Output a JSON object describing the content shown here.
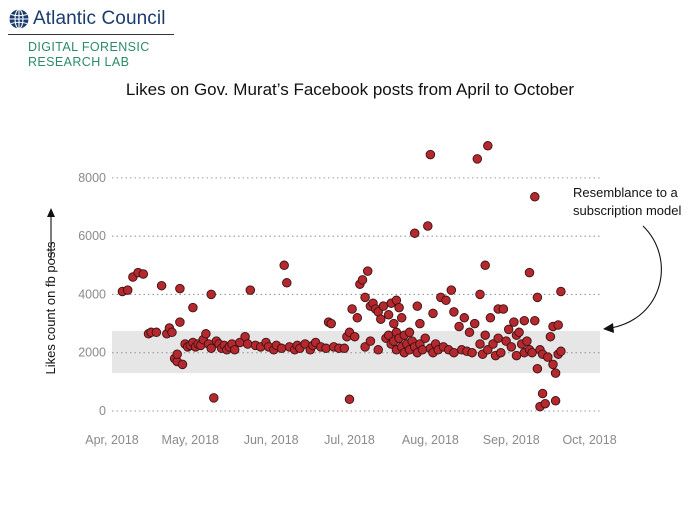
{
  "brand": {
    "org": "Atlantic Council",
    "lab_line1": "DIGITAL FORENSIC",
    "lab_line2": "RESEARCH LAB",
    "logo_icon": "globe-icon"
  },
  "colors": {
    "dot": "#b5282e",
    "dot_edge": "#3a1214",
    "band": "#e6e6e6",
    "grid": "#9a9a9a",
    "brand_blue": "#1a3b6e",
    "brand_green": "#2a8c66"
  },
  "chart_data": {
    "type": "scatter",
    "title": "Likes on Gov. Murat’s Facebook posts from April to October",
    "xlabel": "",
    "ylabel": "Likes count on fb posts",
    "x_ticks": [
      "Apr, 2018",
      "May, 2018",
      "Jun, 2018",
      "Jul, 2018",
      "Aug, 2018",
      "Sep, 2018",
      "Oct, 2018"
    ],
    "y_ticks": [
      0,
      2000,
      4000,
      6000,
      8000
    ],
    "xlim": [
      "2018-04-01",
      "2018-10-05"
    ],
    "ylim": [
      0,
      9300
    ],
    "grid": "horizontal dotted",
    "band": [
      1300,
      2750
    ],
    "annotation": {
      "line1": "Resemblance to a",
      "line2": "subscription model"
    },
    "points": [
      {
        "x": "2018-04-05",
        "y": 4100
      },
      {
        "x": "2018-04-07",
        "y": 4150
      },
      {
        "x": "2018-04-09",
        "y": 4600
      },
      {
        "x": "2018-04-11",
        "y": 4750
      },
      {
        "x": "2018-04-13",
        "y": 4700
      },
      {
        "x": "2018-04-15",
        "y": 2650
      },
      {
        "x": "2018-04-16",
        "y": 2700
      },
      {
        "x": "2018-04-18",
        "y": 2700
      },
      {
        "x": "2018-04-20",
        "y": 4300
      },
      {
        "x": "2018-04-22",
        "y": 2650
      },
      {
        "x": "2018-04-23",
        "y": 2850
      },
      {
        "x": "2018-04-24",
        "y": 2700
      },
      {
        "x": "2018-04-25",
        "y": 1800
      },
      {
        "x": "2018-04-26",
        "y": 1700
      },
      {
        "x": "2018-04-26",
        "y": 1950
      },
      {
        "x": "2018-04-27",
        "y": 3050
      },
      {
        "x": "2018-04-27",
        "y": 4200
      },
      {
        "x": "2018-04-28",
        "y": 1600
      },
      {
        "x": "2018-04-29",
        "y": 2300
      },
      {
        "x": "2018-04-30",
        "y": 2200
      },
      {
        "x": "2018-05-01",
        "y": 2250
      },
      {
        "x": "2018-05-02",
        "y": 3550
      },
      {
        "x": "2018-05-02",
        "y": 2350
      },
      {
        "x": "2018-05-03",
        "y": 2200
      },
      {
        "x": "2018-05-04",
        "y": 2300
      },
      {
        "x": "2018-05-05",
        "y": 2250
      },
      {
        "x": "2018-05-06",
        "y": 2450
      },
      {
        "x": "2018-05-07",
        "y": 2650
      },
      {
        "x": "2018-05-08",
        "y": 2300
      },
      {
        "x": "2018-05-09",
        "y": 4000
      },
      {
        "x": "2018-05-09",
        "y": 2150
      },
      {
        "x": "2018-05-10",
        "y": 450
      },
      {
        "x": "2018-05-11",
        "y": 2400
      },
      {
        "x": "2018-05-12",
        "y": 2300
      },
      {
        "x": "2018-05-13",
        "y": 2150
      },
      {
        "x": "2018-05-14",
        "y": 2250
      },
      {
        "x": "2018-05-15",
        "y": 2100
      },
      {
        "x": "2018-05-16",
        "y": 2200
      },
      {
        "x": "2018-05-17",
        "y": 2300
      },
      {
        "x": "2018-05-18",
        "y": 2100
      },
      {
        "x": "2018-05-20",
        "y": 2350
      },
      {
        "x": "2018-05-22",
        "y": 2550
      },
      {
        "x": "2018-05-23",
        "y": 2300
      },
      {
        "x": "2018-05-24",
        "y": 4150
      },
      {
        "x": "2018-05-26",
        "y": 2250
      },
      {
        "x": "2018-05-28",
        "y": 2200
      },
      {
        "x": "2018-05-30",
        "y": 2350
      },
      {
        "x": "2018-05-31",
        "y": 2200
      },
      {
        "x": "2018-06-02",
        "y": 2100
      },
      {
        "x": "2018-06-03",
        "y": 2250
      },
      {
        "x": "2018-06-05",
        "y": 2150
      },
      {
        "x": "2018-06-06",
        "y": 5000
      },
      {
        "x": "2018-06-07",
        "y": 4400
      },
      {
        "x": "2018-06-08",
        "y": 2200
      },
      {
        "x": "2018-06-10",
        "y": 2100
      },
      {
        "x": "2018-06-11",
        "y": 2250
      },
      {
        "x": "2018-06-12",
        "y": 2150
      },
      {
        "x": "2018-06-14",
        "y": 2300
      },
      {
        "x": "2018-06-16",
        "y": 2100
      },
      {
        "x": "2018-06-17",
        "y": 2250
      },
      {
        "x": "2018-06-18",
        "y": 2350
      },
      {
        "x": "2018-06-20",
        "y": 2200
      },
      {
        "x": "2018-06-22",
        "y": 2150
      },
      {
        "x": "2018-06-23",
        "y": 3050
      },
      {
        "x": "2018-06-24",
        "y": 3000
      },
      {
        "x": "2018-06-25",
        "y": 2200
      },
      {
        "x": "2018-06-27",
        "y": 2150
      },
      {
        "x": "2018-06-29",
        "y": 2150
      },
      {
        "x": "2018-06-30",
        "y": 2550
      },
      {
        "x": "2018-07-01",
        "y": 400
      },
      {
        "x": "2018-07-01",
        "y": 2700
      },
      {
        "x": "2018-07-02",
        "y": 3500
      },
      {
        "x": "2018-07-03",
        "y": 2550
      },
      {
        "x": "2018-07-04",
        "y": 3200
      },
      {
        "x": "2018-07-05",
        "y": 4350
      },
      {
        "x": "2018-07-06",
        "y": 4500
      },
      {
        "x": "2018-07-07",
        "y": 3900
      },
      {
        "x": "2018-07-07",
        "y": 2200
      },
      {
        "x": "2018-07-08",
        "y": 4800
      },
      {
        "x": "2018-07-09",
        "y": 3600
      },
      {
        "x": "2018-07-09",
        "y": 2400
      },
      {
        "x": "2018-07-10",
        "y": 3700
      },
      {
        "x": "2018-07-11",
        "y": 3500
      },
      {
        "x": "2018-07-12",
        "y": 3400
      },
      {
        "x": "2018-07-12",
        "y": 2100
      },
      {
        "x": "2018-07-13",
        "y": 3150
      },
      {
        "x": "2018-07-14",
        "y": 3600
      },
      {
        "x": "2018-07-15",
        "y": 2500
      },
      {
        "x": "2018-07-16",
        "y": 3300
      },
      {
        "x": "2018-07-16",
        "y": 2600
      },
      {
        "x": "2018-07-17",
        "y": 3700
      },
      {
        "x": "2018-07-17",
        "y": 2300
      },
      {
        "x": "2018-07-18",
        "y": 3000
      },
      {
        "x": "2018-07-18",
        "y": 2400
      },
      {
        "x": "2018-07-19",
        "y": 3800
      },
      {
        "x": "2018-07-19",
        "y": 2700
      },
      {
        "x": "2018-07-19",
        "y": 2100
      },
      {
        "x": "2018-07-20",
        "y": 3550
      },
      {
        "x": "2018-07-20",
        "y": 2500
      },
      {
        "x": "2018-07-21",
        "y": 3200
      },
      {
        "x": "2018-07-21",
        "y": 2200
      },
      {
        "x": "2018-07-22",
        "y": 2600
      },
      {
        "x": "2018-07-22",
        "y": 2000
      },
      {
        "x": "2018-07-23",
        "y": 2300
      },
      {
        "x": "2018-07-24",
        "y": 2700
      },
      {
        "x": "2018-07-24",
        "y": 2100
      },
      {
        "x": "2018-07-25",
        "y": 2400
      },
      {
        "x": "2018-07-26",
        "y": 6100
      },
      {
        "x": "2018-07-26",
        "y": 2200
      },
      {
        "x": "2018-07-27",
        "y": 3600
      },
      {
        "x": "2018-07-27",
        "y": 2000
      },
      {
        "x": "2018-07-28",
        "y": 3000
      },
      {
        "x": "2018-07-28",
        "y": 2300
      },
      {
        "x": "2018-07-29",
        "y": 2100
      },
      {
        "x": "2018-07-30",
        "y": 2500
      },
      {
        "x": "2018-07-31",
        "y": 6350
      },
      {
        "x": "2018-08-01",
        "y": 8800
      },
      {
        "x": "2018-08-01",
        "y": 2150
      },
      {
        "x": "2018-08-02",
        "y": 3350
      },
      {
        "x": "2018-08-02",
        "y": 2000
      },
      {
        "x": "2018-08-03",
        "y": 2300
      },
      {
        "x": "2018-08-04",
        "y": 2100
      },
      {
        "x": "2018-08-05",
        "y": 3900
      },
      {
        "x": "2018-08-06",
        "y": 2200
      },
      {
        "x": "2018-08-07",
        "y": 3800
      },
      {
        "x": "2018-08-08",
        "y": 2100
      },
      {
        "x": "2018-08-09",
        "y": 4150
      },
      {
        "x": "2018-08-10",
        "y": 3400
      },
      {
        "x": "2018-08-10",
        "y": 2000
      },
      {
        "x": "2018-08-12",
        "y": 2900
      },
      {
        "x": "2018-08-13",
        "y": 2100
      },
      {
        "x": "2018-08-14",
        "y": 3200
      },
      {
        "x": "2018-08-15",
        "y": 2050
      },
      {
        "x": "2018-08-16",
        "y": 2700
      },
      {
        "x": "2018-08-17",
        "y": 2000
      },
      {
        "x": "2018-08-18",
        "y": 3000
      },
      {
        "x": "2018-08-19",
        "y": 8650
      },
      {
        "x": "2018-08-20",
        "y": 4000
      },
      {
        "x": "2018-08-20",
        "y": 2300
      },
      {
        "x": "2018-08-21",
        "y": 1950
      },
      {
        "x": "2018-08-22",
        "y": 2600
      },
      {
        "x": "2018-08-22",
        "y": 5000
      },
      {
        "x": "2018-08-23",
        "y": 9100
      },
      {
        "x": "2018-08-23",
        "y": 2100
      },
      {
        "x": "2018-08-24",
        "y": 3200
      },
      {
        "x": "2018-08-25",
        "y": 2300
      },
      {
        "x": "2018-08-26",
        "y": 1900
      },
      {
        "x": "2018-08-27",
        "y": 3500
      },
      {
        "x": "2018-08-27",
        "y": 2500
      },
      {
        "x": "2018-08-28",
        "y": 2000
      },
      {
        "x": "2018-08-29",
        "y": 3500
      },
      {
        "x": "2018-08-30",
        "y": 2400
      },
      {
        "x": "2018-08-31",
        "y": 2800
      },
      {
        "x": "2018-09-01",
        "y": 2200
      },
      {
        "x": "2018-09-02",
        "y": 3050
      },
      {
        "x": "2018-09-03",
        "y": 2600
      },
      {
        "x": "2018-09-03",
        "y": 1900
      },
      {
        "x": "2018-09-04",
        "y": 2700
      },
      {
        "x": "2018-09-05",
        "y": 2300
      },
      {
        "x": "2018-09-06",
        "y": 3100
      },
      {
        "x": "2018-09-06",
        "y": 2000
      },
      {
        "x": "2018-09-07",
        "y": 2400
      },
      {
        "x": "2018-09-08",
        "y": 4750
      },
      {
        "x": "2018-09-08",
        "y": 2100
      },
      {
        "x": "2018-09-09",
        "y": 2000
      },
      {
        "x": "2018-09-10",
        "y": 7350
      },
      {
        "x": "2018-09-10",
        "y": 3100
      },
      {
        "x": "2018-09-11",
        "y": 3900
      },
      {
        "x": "2018-09-11",
        "y": 1450
      },
      {
        "x": "2018-09-12",
        "y": 150
      },
      {
        "x": "2018-09-12",
        "y": 2100
      },
      {
        "x": "2018-09-13",
        "y": 600
      },
      {
        "x": "2018-09-13",
        "y": 1950
      },
      {
        "x": "2018-09-14",
        "y": 250
      },
      {
        "x": "2018-09-15",
        "y": 1850
      },
      {
        "x": "2018-09-16",
        "y": 2550
      },
      {
        "x": "2018-09-17",
        "y": 2900
      },
      {
        "x": "2018-09-17",
        "y": 1600
      },
      {
        "x": "2018-09-18",
        "y": 1300
      },
      {
        "x": "2018-09-18",
        "y": 350
      },
      {
        "x": "2018-09-19",
        "y": 2950
      },
      {
        "x": "2018-09-19",
        "y": 1950
      },
      {
        "x": "2018-09-20",
        "y": 4100
      },
      {
        "x": "2018-09-20",
        "y": 2050
      }
    ]
  }
}
